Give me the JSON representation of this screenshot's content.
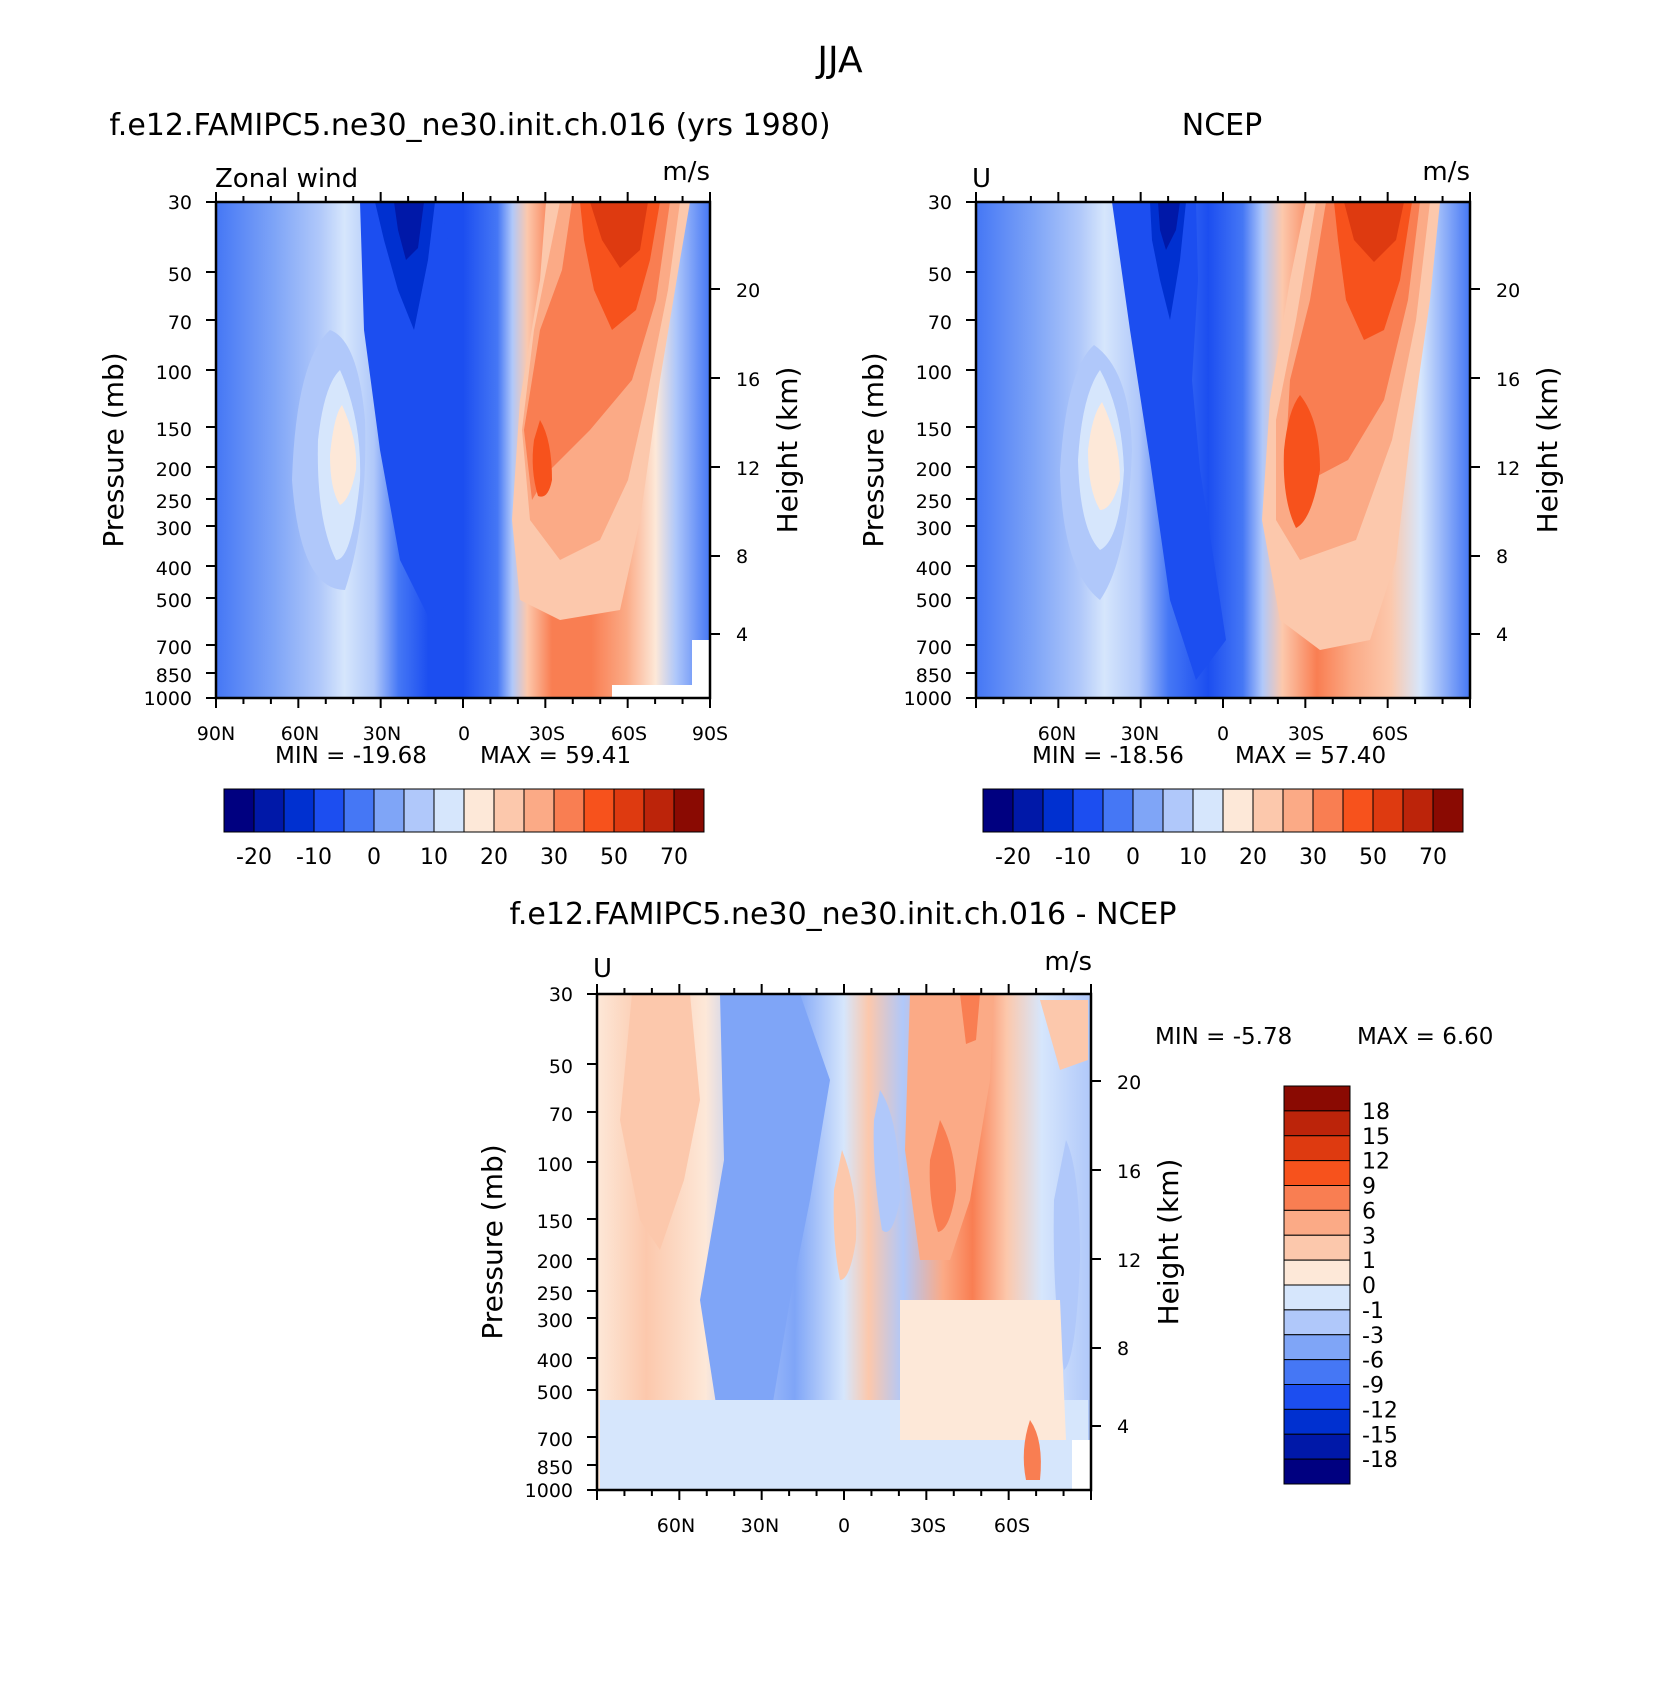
{
  "figure": {
    "title": "JJA",
    "colors": {
      "main": [
        "#000080",
        "#0018a8",
        "#0030d0",
        "#1c4ef0",
        "#4577f5",
        "#7fa5f7",
        "#b0c8fa",
        "#d6e6fc",
        "#fde8d8",
        "#fcc8ac",
        "#fbaa86",
        "#f97e52",
        "#f7521c",
        "#de3a10",
        "#bc240a",
        "#8a0a02"
      ],
      "diff": [
        "#000080",
        "#0018a8",
        "#0030d0",
        "#1c4ef0",
        "#4577f5",
        "#7fa5f7",
        "#b0c8fa",
        "#d6e6fc",
        "#fde8d8",
        "#fcc8ac",
        "#fbaa86",
        "#f97e52",
        "#f7521c",
        "#de3a10",
        "#bc240a",
        "#8a0a02"
      ]
    }
  },
  "chart_data": [
    {
      "type": "heatmap",
      "title": "f.e12.FAMIPC5.ne30_ne30.init.ch.016 (yrs 1980)",
      "left_label": "Zonal wind",
      "units": "m/s",
      "ylabel": "Pressure (mb)",
      "ylabel_right": "Height (km)",
      "x_ticks": [
        "90N",
        "60N",
        "30N",
        "0",
        "30S",
        "60S",
        "90S"
      ],
      "x_range": [
        "90N",
        "90S"
      ],
      "y_ticks": [
        "30",
        "50",
        "70",
        "100",
        "150",
        "200",
        "250",
        "300",
        "400",
        "500",
        "700",
        "850",
        "1000"
      ],
      "y_range": [
        1000,
        30
      ],
      "y_right_ticks": [
        "20",
        "16",
        "12",
        "8",
        "4"
      ],
      "min_label": "MIN = -19.68",
      "max_label": "MAX = 59.41",
      "min": -19.68,
      "max": 59.41,
      "colorbar_labels": [
        "-20",
        "-10",
        "0",
        "10",
        "20",
        "30",
        "50",
        "70"
      ]
    },
    {
      "type": "heatmap",
      "title": "NCEP",
      "left_label": "U",
      "units": "m/s",
      "ylabel": "Pressure (mb)",
      "ylabel_right": "Height (km)",
      "x_ticks": [
        "60N",
        "30N",
        "0",
        "30S",
        "60S"
      ],
      "y_ticks": [
        "30",
        "50",
        "70",
        "100",
        "150",
        "200",
        "250",
        "300",
        "400",
        "500",
        "700",
        "850",
        "1000"
      ],
      "y_range": [
        1000,
        30
      ],
      "y_right_ticks": [
        "20",
        "16",
        "12",
        "8",
        "4"
      ],
      "min_label": "MIN = -18.56",
      "max_label": "MAX = 57.40",
      "min": -18.56,
      "max": 57.4,
      "colorbar_labels": [
        "-20",
        "-10",
        "0",
        "10",
        "20",
        "30",
        "50",
        "70"
      ]
    },
    {
      "type": "heatmap",
      "title": "f.e12.FAMIPC5.ne30_ne30.init.ch.016 - NCEP",
      "left_label": "U",
      "units": "m/s",
      "ylabel": "Pressure (mb)",
      "ylabel_right": "Height (km)",
      "x_ticks": [
        "60N",
        "30N",
        "0",
        "30S",
        "60S"
      ],
      "y_ticks": [
        "30",
        "50",
        "70",
        "100",
        "150",
        "200",
        "250",
        "300",
        "400",
        "500",
        "700",
        "850",
        "1000"
      ],
      "y_range": [
        1000,
        30
      ],
      "y_right_ticks": [
        "20",
        "16",
        "12",
        "8",
        "4"
      ],
      "min_label": "MIN = -5.78",
      "max_label": "MAX = 6.60",
      "min": -5.78,
      "max": 6.6,
      "colorbar_labels": [
        "18",
        "15",
        "12",
        "9",
        "6",
        "3",
        "1",
        "0",
        "-1",
        "-3",
        "-6",
        "-9",
        "-12",
        "-15",
        "-18"
      ]
    }
  ]
}
